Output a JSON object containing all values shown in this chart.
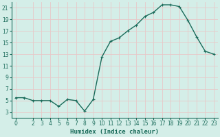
{
  "x": [
    0,
    1,
    2,
    3,
    4,
    5,
    6,
    7,
    8,
    9,
    10,
    11,
    12,
    13,
    14,
    15,
    16,
    17,
    18,
    19,
    20,
    21,
    22,
    23
  ],
  "y": [
    5.5,
    5.5,
    5.0,
    5.0,
    5.0,
    4.0,
    5.2,
    5.0,
    3.2,
    5.2,
    12.5,
    15.2,
    15.8,
    17.0,
    18.0,
    19.5,
    20.2,
    21.5,
    21.5,
    21.2,
    18.8,
    16.0,
    13.5,
    13.0
  ],
  "line_color": "#1a6b5a",
  "marker": "+",
  "bg_color": "#d4eee8",
  "grid_color": "#e8c8c8",
  "xlabel": "Humidex (Indice chaleur)",
  "xlim": [
    -0.5,
    23.5
  ],
  "ylim": [
    2,
    22
  ],
  "yticks": [
    3,
    5,
    7,
    9,
    11,
    13,
    15,
    17,
    19,
    21
  ],
  "xticks": [
    0,
    2,
    3,
    4,
    5,
    6,
    7,
    8,
    9,
    10,
    11,
    12,
    13,
    14,
    15,
    16,
    17,
    18,
    19,
    20,
    21,
    22,
    23
  ],
  "axis_color": "#1a6b5a",
  "tick_color": "#1a6b5a",
  "linewidth": 1.0,
  "markersize": 3.5,
  "tick_fontsize": 5.5,
  "xlabel_fontsize": 6.5
}
